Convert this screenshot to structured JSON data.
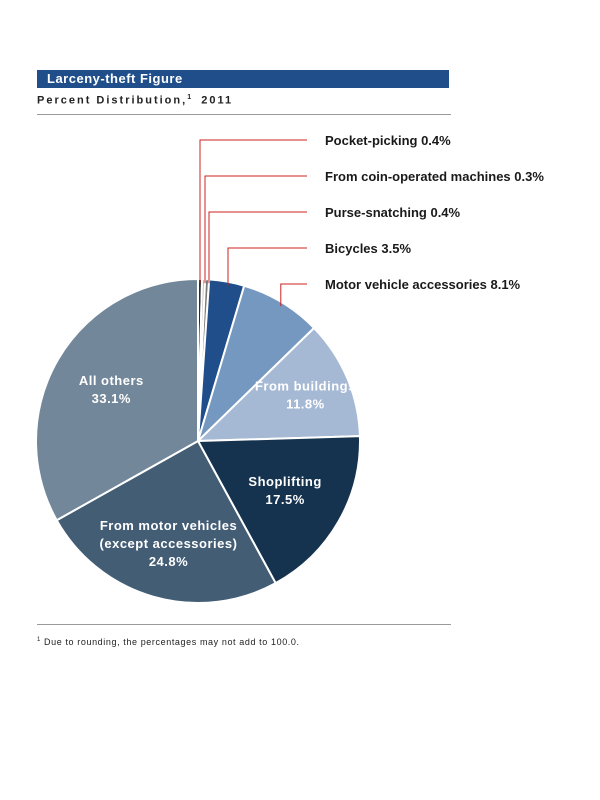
{
  "header": {
    "title": "Larceny-theft Figure",
    "subtitle_text": "Percent Distribution,",
    "subtitle_sup": "1",
    "subtitle_year": "2011"
  },
  "footnote": {
    "marker": "1",
    "text": "Due to rounding, the percentages may not add to 100.0."
  },
  "chart_data": {
    "type": "pie",
    "title": "Larceny-theft Figure",
    "subtitle": "Percent Distribution, 2011",
    "start_angle_deg": 0,
    "direction": "clockwise",
    "slices": [
      {
        "label": "Pocket-picking",
        "value": 0.4,
        "display": "0.4%",
        "color": "#2e2e2e",
        "label_style": "callout"
      },
      {
        "label": "From coin-operated machines",
        "value": 0.3,
        "display": "0.3%",
        "color": "#b3b3b3",
        "label_style": "callout"
      },
      {
        "label": "Purse-snatching",
        "value": 0.4,
        "display": "0.4%",
        "color": "#7a7a7a",
        "label_style": "callout"
      },
      {
        "label": "Bicycles",
        "value": 3.5,
        "display": "3.5%",
        "color": "#1f4e8a",
        "label_style": "callout"
      },
      {
        "label": "Motor vehicle accessories",
        "value": 8.1,
        "display": "8.1%",
        "color": "#7598c0",
        "label_style": "callout"
      },
      {
        "label": "From buildings",
        "value": 11.8,
        "display": "11.8%",
        "color": "#a6b9d4",
        "label_style": "inside"
      },
      {
        "label": "Shoplifting",
        "value": 17.5,
        "display": "17.5%",
        "color": "#15334f",
        "label_style": "inside"
      },
      {
        "label": "From motor vehicles (except accessories)",
        "label_lines": [
          "From motor vehicles",
          "(except accessories)"
        ],
        "value": 24.8,
        "display": "24.8%",
        "color": "#435d75",
        "label_style": "inside"
      },
      {
        "label": "All others",
        "value": 33.1,
        "display": "33.1%",
        "color": "#73879a",
        "label_style": "inside"
      }
    ],
    "leader_color": "#cc2222"
  }
}
